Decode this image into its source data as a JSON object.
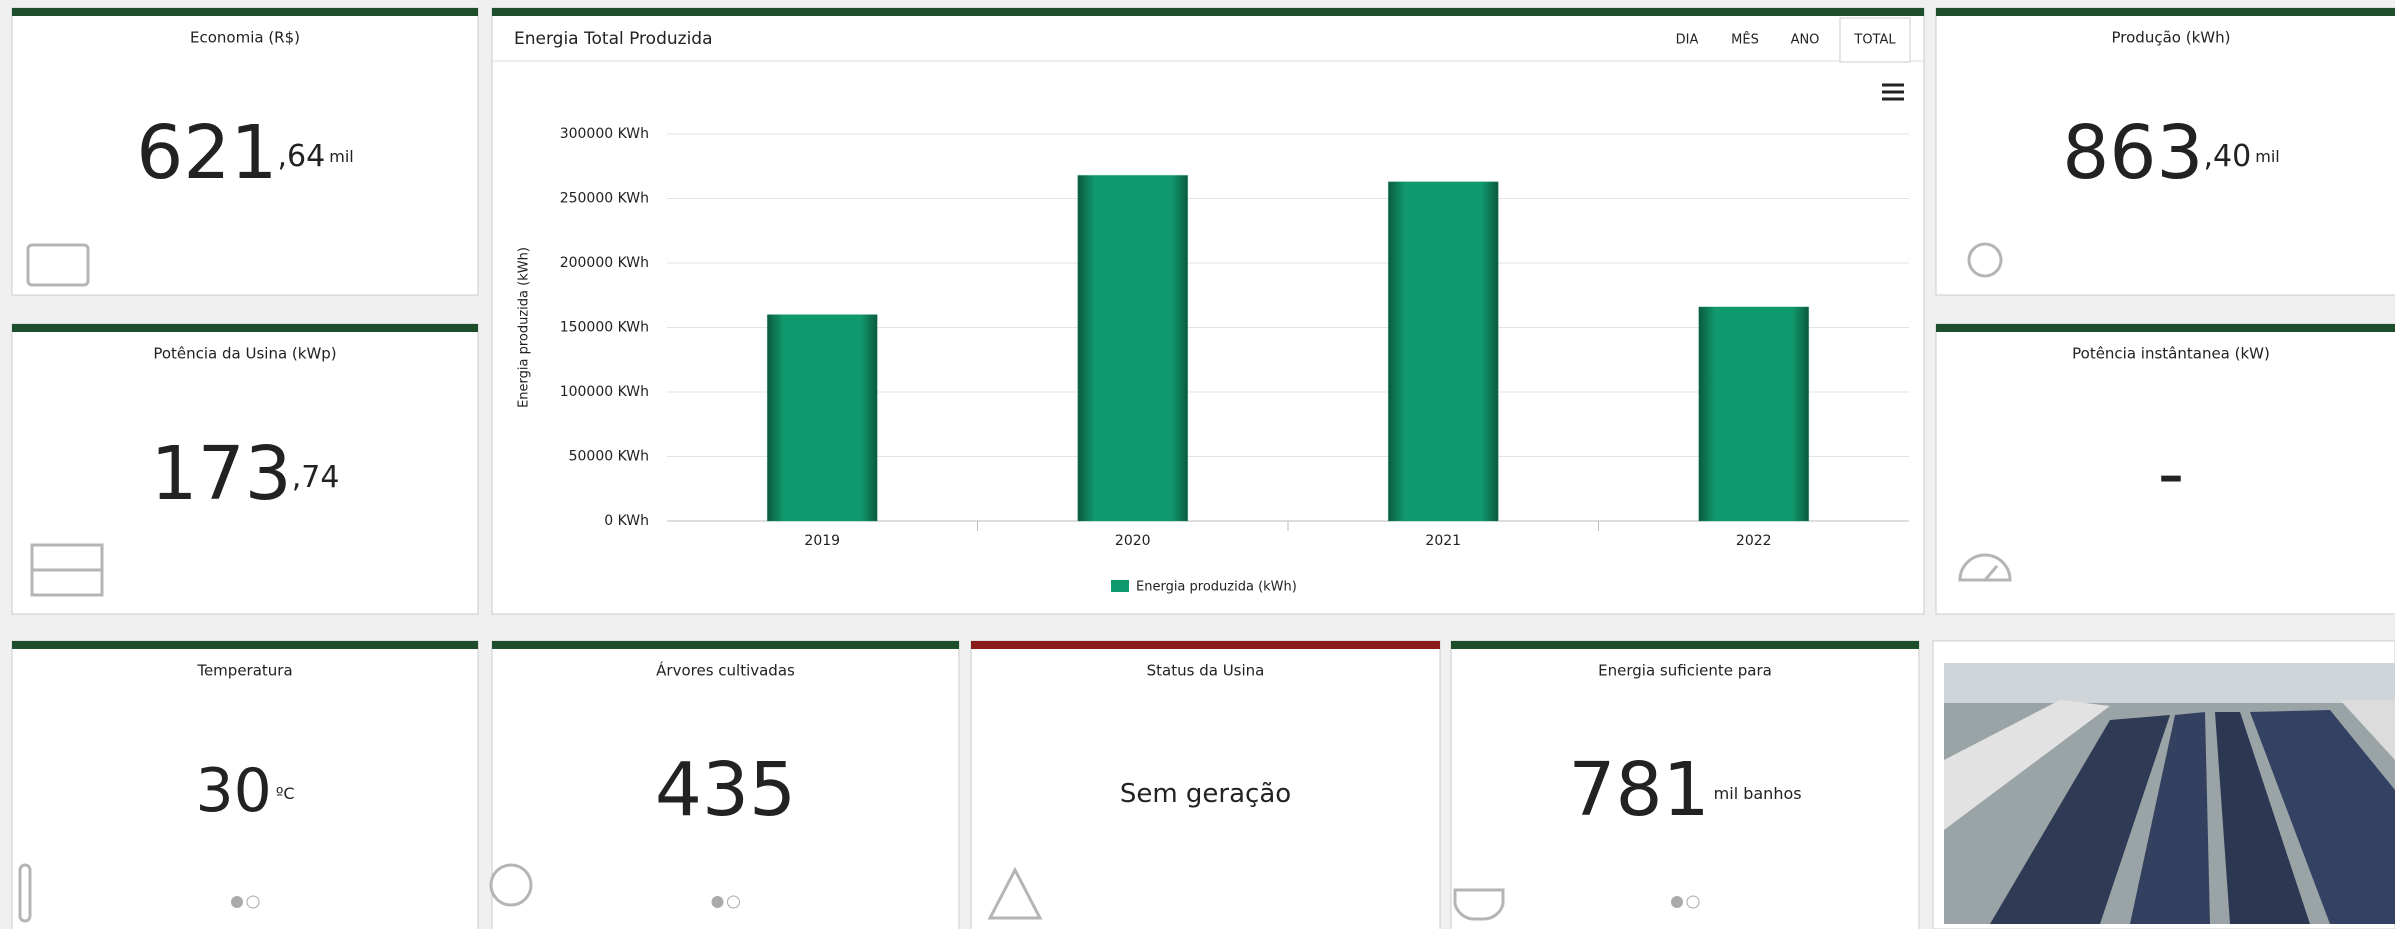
{
  "cards": [
    {
      "title": "Economia (R$)",
      "value": "621",
      "decimal": ",64",
      "unit": "mil"
    },
    {
      "title": "Potência da Usina (kWp)",
      "value": "173",
      "decimal": ",74"
    },
    {
      "title": "Produção (kWh)",
      "value": "863",
      "decimal": ",40",
      "unit": "mil"
    },
    {
      "title": "Potência instântanea (kW)",
      "value": "-"
    },
    {
      "title": "Temperatura",
      "value": "30",
      "unit": "ºC"
    },
    {
      "title": "Árvores cultivadas",
      "value": "435"
    },
    {
      "title": "Status da Usina",
      "value": "Sem geração"
    },
    {
      "title": "Energia suficiente para",
      "value": "781",
      "unit": "mil banhos"
    }
  ],
  "tabs": [
    "DIA",
    "MÊS",
    "ANO",
    "TOTAL"
  ],
  "chart_data": {
    "type": "bar",
    "title": "Energia Total Produzida",
    "y_label": "Energia produzida (kWh)",
    "categories": [
      "2019",
      "2020",
      "2021",
      "2022"
    ],
    "series": [
      {
        "name": "Energia produzida (kWh)",
        "color": "#11996e",
        "values": [
          160000,
          268000,
          263000,
          166000
        ]
      }
    ],
    "ylim": [
      0,
      300000
    ],
    "yticks": [
      {
        "value": 0,
        "label": "0 KWh"
      },
      {
        "value": 50000,
        "label": "50000 KWh"
      },
      {
        "value": 100000,
        "label": "100000 KWh"
      },
      {
        "value": 150000,
        "label": "150000 KWh"
      },
      {
        "value": 200000,
        "label": "200000 KWh"
      },
      {
        "value": 250000,
        "label": "250000 KWh"
      },
      {
        "value": 300000,
        "label": "300000 KWh"
      }
    ],
    "grid": true
  }
}
